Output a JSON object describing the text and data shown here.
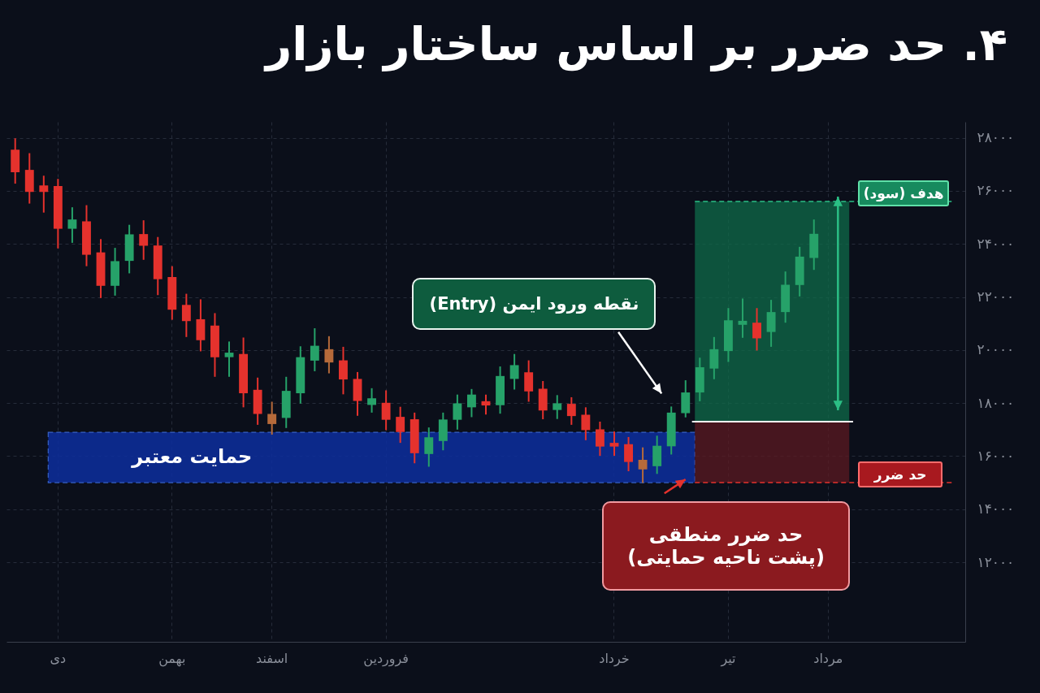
{
  "chart_data": {
    "type": "candlestick",
    "title": "۴. حد ضرر بر اساس ساختار بازار",
    "categories": [
      null,
      null,
      null,
      "دی",
      null,
      null,
      null,
      null,
      null,
      null,
      null,
      "بهمن",
      null,
      null,
      null,
      null,
      null,
      null,
      "اسفند",
      null,
      null,
      null,
      null,
      null,
      null,
      null,
      "فروردین",
      null,
      null,
      null,
      null,
      null,
      null,
      null,
      null,
      null,
      null,
      null,
      null,
      null,
      null,
      null,
      "خرداد",
      null,
      null,
      null,
      null,
      null,
      null,
      null,
      "تیر",
      null,
      null,
      null,
      null,
      null,
      null,
      "مرداد",
      null,
      null,
      null,
      null,
      null,
      null,
      null,
      null,
      null
    ],
    "ohlc": [
      [
        27550,
        27980,
        26270,
        26700
      ],
      [
        26790,
        27420,
        25520,
        25960
      ],
      [
        26200,
        26570,
        25180,
        25960
      ],
      [
        26180,
        26450,
        23830,
        24570
      ],
      [
        24570,
        25380,
        24040,
        24920
      ],
      [
        24850,
        25460,
        23160,
        23590
      ],
      [
        23680,
        24180,
        21960,
        22420
      ],
      [
        22420,
        23850,
        22050,
        23350
      ],
      [
        23360,
        24720,
        22890,
        24360
      ],
      [
        24370,
        24890,
        23400,
        23930
      ],
      [
        23940,
        24260,
        22070,
        22670
      ],
      [
        22750,
        23160,
        21140,
        21520
      ],
      [
        21700,
        22120,
        20490,
        21090
      ],
      [
        21160,
        21910,
        19950,
        20370
      ],
      [
        20920,
        21390,
        18990,
        19730
      ],
      [
        19730,
        20320,
        18990,
        19900
      ],
      [
        19850,
        20470,
        17840,
        18370
      ],
      [
        18500,
        18960,
        17180,
        17590
      ],
      [
        17590,
        18050,
        16810,
        17210
      ],
      [
        17440,
        18990,
        17060,
        18460
      ],
      [
        18370,
        20140,
        17980,
        19730
      ],
      [
        19600,
        20820,
        19200,
        20160
      ],
      [
        20030,
        20520,
        19120,
        19530
      ],
      [
        19610,
        20120,
        18330,
        18890
      ],
      [
        18910,
        19170,
        17520,
        18080
      ],
      [
        17930,
        18560,
        17640,
        18180
      ],
      [
        18010,
        18480,
        16980,
        17370
      ],
      [
        17480,
        17860,
        16500,
        16910
      ],
      [
        17390,
        17640,
        15730,
        16110
      ],
      [
        16080,
        17080,
        15600,
        16710
      ],
      [
        16570,
        17640,
        16220,
        17380
      ],
      [
        17370,
        18320,
        17000,
        17990
      ],
      [
        17840,
        18530,
        17470,
        18320
      ],
      [
        18070,
        18320,
        17570,
        17910
      ],
      [
        17920,
        19380,
        17600,
        19020
      ],
      [
        18910,
        19850,
        18510,
        19430
      ],
      [
        19160,
        19610,
        18050,
        18440
      ],
      [
        18540,
        18830,
        17390,
        17720
      ],
      [
        17740,
        18300,
        17400,
        17990
      ],
      [
        17970,
        18220,
        17180,
        17510
      ],
      [
        17560,
        17840,
        16600,
        16980
      ],
      [
        17010,
        17300,
        16010,
        16360
      ],
      [
        16500,
        16930,
        16010,
        16360
      ],
      [
        16450,
        16720,
        15430,
        15780
      ],
      [
        15860,
        16330,
        14990,
        15500
      ],
      [
        15620,
        16770,
        15330,
        16390
      ],
      [
        16370,
        17870,
        16060,
        17640
      ],
      [
        17620,
        18860,
        17460,
        18400
      ],
      [
        18400,
        19710,
        18070,
        19350
      ],
      [
        19300,
        20490,
        18900,
        20030
      ],
      [
        19960,
        21580,
        19550,
        21120
      ],
      [
        20950,
        21940,
        20460,
        21100
      ],
      [
        21030,
        21580,
        19980,
        20440
      ],
      [
        20680,
        21890,
        20120,
        21430
      ],
      [
        21430,
        22960,
        21030,
        22460
      ],
      [
        22450,
        23890,
        22020,
        23520
      ],
      [
        23470,
        24920,
        23020,
        24380
      ],
      null,
      null,
      null,
      null,
      null,
      null,
      null,
      null,
      null,
      null
    ],
    "colors": [
      "#e5322d",
      "#e5322d",
      "#e5322d",
      "#e5322d",
      "#26a269",
      "#e5322d",
      "#e5322d",
      "#26a269",
      "#26a269",
      "#e5322d",
      "#e5322d",
      "#e5322d",
      "#e5322d",
      "#e5322d",
      "#e5322d",
      "#26a269",
      "#e5322d",
      "#e5322d",
      "#b66a3a",
      "#26a269",
      "#26a269",
      "#26a269",
      "#b66a3a",
      "#e5322d",
      "#e5322d",
      "#26a269",
      "#e5322d",
      "#e5322d",
      "#e5322d",
      "#26a269",
      "#26a269",
      "#26a269",
      "#26a269",
      "#e5322d",
      "#26a269",
      "#26a269",
      "#e5322d",
      "#e5322d",
      "#26a269",
      "#e5322d",
      "#e5322d",
      "#e5322d",
      "#e5322d",
      "#e5322d",
      "#b66a3a",
      "#26a269",
      "#26a269",
      "#26a269",
      "#26a269",
      "#26a269",
      "#26a269",
      "#26a269",
      "#e5322d",
      "#26a269",
      "#26a269",
      "#26a269",
      "#26a269",
      null,
      null,
      null,
      null,
      null,
      null,
      null,
      null,
      null,
      null
    ],
    "ylim": [
      9000,
      28600
    ],
    "yticks": [
      {
        "value": 12000,
        "label": "۱۲۰۰۰"
      },
      {
        "value": 14000,
        "label": "۱۴۰۰۰"
      },
      {
        "value": 16000,
        "label": "۱۶۰۰۰"
      },
      {
        "value": 18000,
        "label": "۱۸۰۰۰"
      },
      {
        "value": 20000,
        "label": "۲۰۰۰۰"
      },
      {
        "value": 22000,
        "label": "۲۲۰۰۰"
      },
      {
        "value": 24000,
        "label": "۲۴۰۰۰"
      },
      {
        "value": 26000,
        "label": "۲۶۰۰۰"
      },
      {
        "value": 28000,
        "label": "۲۸۰۰۰"
      }
    ],
    "grid": true,
    "ref_lines": [
      {
        "axis": "y",
        "value": 25600,
        "label": "هدف (سود)",
        "color": "#2bbf85",
        "line_style": "dashed"
      },
      {
        "axis": "y",
        "value": 15000,
        "label": "حد ضرر",
        "color": "#e5322d",
        "line_style": "dashed"
      },
      {
        "axis": "y",
        "value": 17300,
        "color": "#ffffff",
        "line_style": "solid"
      }
    ],
    "bands": [
      {
        "axis": "y",
        "from": 15000,
        "to": 16900,
        "label": "حمایت معتبر",
        "color": "#0d2e9e"
      },
      {
        "axis": "y",
        "from": 17300,
        "to": 25600,
        "color": "#0f6b4a"
      },
      {
        "axis": "y",
        "from": 15000,
        "to": 17300,
        "color": "#5c1a22"
      }
    ],
    "annotations": [
      "نقطه ورود ایمن (Entry)",
      "حد ضرر منطقی\n(پشت ناحیه حمایتی)"
    ]
  }
}
